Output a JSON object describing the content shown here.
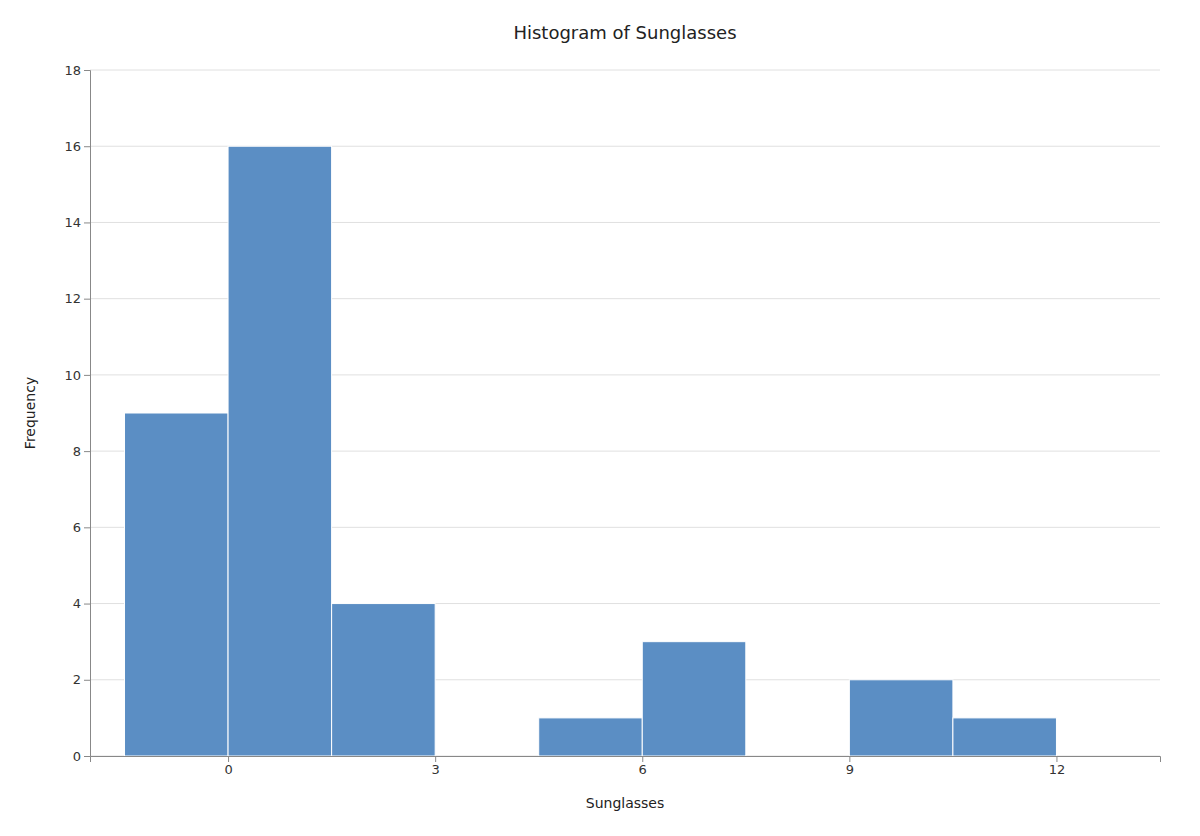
{
  "chart_data": {
    "type": "histogram",
    "title": "Histogram of Sunglasses",
    "x_label": "Sunglasses",
    "y_label": "Frequency",
    "bins": [
      -1.5,
      0,
      1.5,
      3.0,
      4.5,
      6.0,
      7.5,
      9.0,
      10.5,
      12.0
    ],
    "values": [
      9,
      16,
      4,
      0,
      1,
      3,
      0,
      2,
      1
    ],
    "color": "#5b8ec4",
    "xlim": [
      -2,
      13.5
    ],
    "xticks": [
      0,
      3,
      6,
      9,
      12
    ],
    "ylim": [
      0,
      18
    ],
    "yticks": [
      0,
      2,
      4,
      6,
      8,
      10,
      12,
      14,
      16,
      18
    ],
    "grid": "y"
  }
}
